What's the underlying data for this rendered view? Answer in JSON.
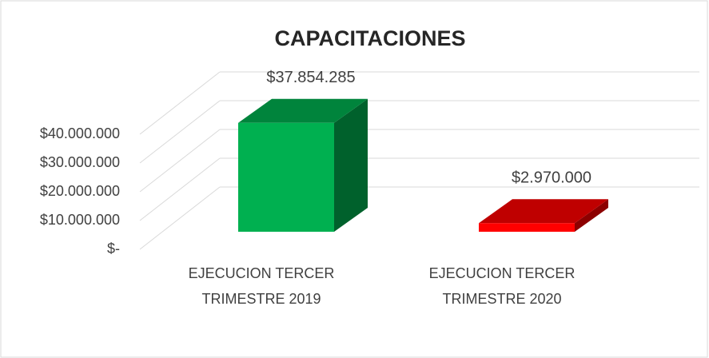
{
  "chart_data": {
    "type": "bar3d",
    "title": "CAPACITACIONES",
    "categories": [
      [
        "EJECUCION TERCER",
        "TRIMESTRE 2019"
      ],
      [
        "EJECUCION TERCER",
        "TRIMESTRE 2020"
      ]
    ],
    "values": [
      37854285,
      2970000
    ],
    "value_labels": [
      "$37.854.285",
      "$2.970.000"
    ],
    "colors": [
      "#00b050",
      "#ff0000"
    ],
    "ylim": [
      0,
      40000000
    ],
    "yticks": [
      {
        "value": 0,
        "label": "$-"
      },
      {
        "value": 10000000,
        "label": "$10.000.000"
      },
      {
        "value": 20000000,
        "label": "$20.000.000"
      },
      {
        "value": 30000000,
        "label": "$30.000.000"
      },
      {
        "value": 40000000,
        "label": "$40.000.000"
      }
    ],
    "grid": true
  }
}
